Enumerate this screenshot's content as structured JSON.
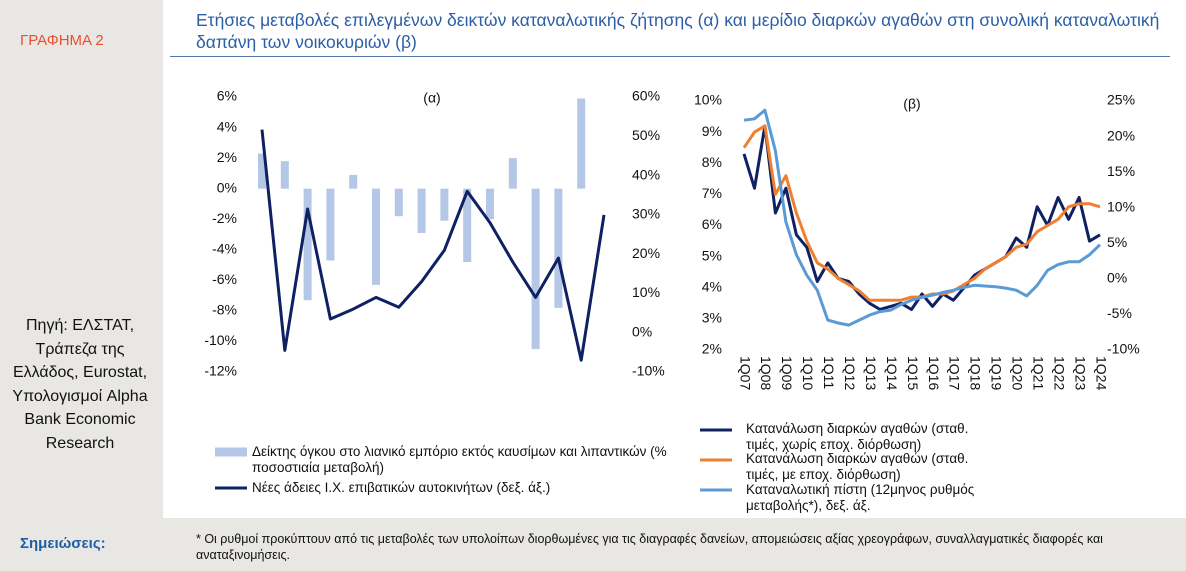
{
  "page": {
    "label": "ΓΡΑΦΗΜΑ 2",
    "title": "Ετήσιες μεταβολές επιλεγμένων δεικτών καταναλωτικής ζήτησης (α) και μερίδιο διαρκών αγαθών στη συνολική καταναλωτική δαπάνη των νοικοκυριών (β)",
    "source": "Πηγή: ΕΛΣΤΑΤ, Τράπεζα της Ελλάδος, Eurostat, Υπολογισμοί Alpha Bank Economic Research",
    "notes_label": "Σημειώσεις:",
    "notes": "* Οι ρυθμοί προκύπτουν από τις μεταβολές των υπολοίπων διορθωμένες για τις διαγραφές δανείων, απομειώσεις αξίας χρεογράφων, συναλλαγματικές διαφορές και αναταξινομήσεις."
  },
  "chart_data": [
    {
      "type": "bar",
      "title": "(α)",
      "categories": [
        null,
        null,
        null,
        null,
        null,
        null,
        null,
        null,
        null,
        null,
        null,
        null,
        null,
        null,
        null,
        null
      ],
      "series": [
        {
          "name": "Δείκτης όγκου στο λιανικό εμπόριο εκτός καυσίμων και λιπαντικών (% ποσοστιαία μεταβολή)",
          "type": "bar",
          "color": "#b4c7e7",
          "values": [
            2.3,
            1.8,
            -7.3,
            -4.7,
            0.9,
            -6.3,
            -1.8,
            -2.9,
            -2.1,
            -4.8,
            -2.0,
            2.0,
            -10.5,
            -7.8,
            5.9,
            null
          ]
        },
        {
          "name": "Νέες άδειες Ι.Χ. επιβατικών αυτοκινήτων (δεξ. άξ.)",
          "type": "line",
          "axis": "y2",
          "color": "#0f2063",
          "values": [
            51.7,
            -4.5,
            31.5,
            3.5,
            6,
            9,
            6.5,
            13,
            21,
            36,
            28,
            18,
            9,
            19,
            -7,
            30
          ]
        }
      ],
      "ylim": [
        -12,
        6
      ],
      "yticks": [
        {
          "value": 6,
          "label": "6%"
        },
        {
          "value": 4,
          "label": "4%"
        },
        {
          "value": 2,
          "label": "2%"
        },
        {
          "value": 0,
          "label": "0%"
        },
        {
          "value": -2,
          "label": "-2%"
        },
        {
          "value": -4,
          "label": "-4%"
        },
        {
          "value": -6,
          "label": "-6%"
        },
        {
          "value": -8,
          "label": "-8%"
        },
        {
          "value": -10,
          "label": "-10%"
        },
        {
          "value": -12,
          "label": "-12%"
        }
      ],
      "y2lim": [
        -10,
        60
      ],
      "y2ticks": [
        {
          "value": 60,
          "label": "60%"
        },
        {
          "value": 50,
          "label": "50%"
        },
        {
          "value": 40,
          "label": "40%"
        },
        {
          "value": 30,
          "label": "30%"
        },
        {
          "value": 20,
          "label": "20%"
        },
        {
          "value": 10,
          "label": "10%"
        },
        {
          "value": 0,
          "label": "0%"
        },
        {
          "value": -10,
          "label": "-10%"
        }
      ]
    },
    {
      "type": "line",
      "title": "(β)",
      "categories": [
        "1Q07",
        null,
        "1Q08",
        null,
        "1Q09",
        null,
        "1Q10",
        null,
        "1Q11",
        null,
        "1Q12",
        null,
        "1Q13",
        null,
        "1Q14",
        null,
        "1Q15",
        null,
        "1Q16",
        null,
        "1Q17",
        null,
        "1Q18",
        null,
        "1Q19",
        null,
        "1Q20",
        null,
        "1Q21",
        null,
        "1Q22",
        null,
        "1Q23",
        null,
        "1Q24"
      ],
      "series": [
        {
          "name": "Κατανάλωση διαρκών αγαθών (σταθ. τιμές, χωρίς εποχ. διόρθωση)",
          "color": "#0f2063",
          "values": [
            8.3,
            7.2,
            9.2,
            6.4,
            7.2,
            5.7,
            5.3,
            4.2,
            4.8,
            4.3,
            4.2,
            3.8,
            3.5,
            3.3,
            3.4,
            3.5,
            3.3,
            3.8,
            3.4,
            3.8,
            3.6,
            4.0,
            4.4,
            4.6,
            4.8,
            5.0,
            5.6,
            5.3,
            6.6,
            6.0,
            6.9,
            6.2,
            6.9,
            5.5,
            5.7
          ]
        },
        {
          "name": "Κατανάλωση διαρκών αγαθών (σταθ. τιμές, με εποχ. διόρθωση)",
          "color": "#f07f2f",
          "values": [
            8.5,
            9.0,
            9.2,
            7.0,
            7.6,
            6.4,
            5.5,
            4.8,
            4.6,
            4.3,
            4.1,
            3.9,
            3.6,
            3.6,
            3.6,
            3.6,
            3.7,
            3.7,
            3.8,
            3.8,
            3.9,
            4.1,
            4.3,
            4.6,
            4.8,
            5.0,
            5.3,
            5.4,
            5.8,
            6.0,
            6.2,
            6.6,
            6.7,
            6.7,
            6.6
          ]
        },
        {
          "name": "Καταναλωτική πίστη (12μηνος ρυθμός μεταβολής*), δεξ. άξ.",
          "axis": "y2",
          "color": "#5b9bd5",
          "values": [
            22.3,
            22.5,
            23.7,
            18,
            8,
            3.4,
            0.5,
            -1.6,
            -5.8,
            -6.2,
            -6.5,
            -5.8,
            -5.1,
            -4.6,
            -4.4,
            -3.6,
            -3,
            -2.6,
            -2.3,
            -1.9,
            -1.6,
            -1.2,
            -0.9,
            -1,
            -1.1,
            -1.3,
            -1.6,
            -2.4,
            -0.9,
            1.2,
            2,
            2.4,
            2.4,
            3.4,
            4.8
          ]
        }
      ],
      "ylim": [
        2,
        10
      ],
      "yticks": [
        {
          "value": 10,
          "label": "10%"
        },
        {
          "value": 9,
          "label": "9%"
        },
        {
          "value": 8,
          "label": "8%"
        },
        {
          "value": 7,
          "label": "7%"
        },
        {
          "value": 6,
          "label": "6%"
        },
        {
          "value": 5,
          "label": "5%"
        },
        {
          "value": 4,
          "label": "4%"
        },
        {
          "value": 3,
          "label": "3%"
        },
        {
          "value": 2,
          "label": "2%"
        }
      ],
      "y2lim": [
        -10,
        25
      ],
      "y2ticks": [
        {
          "value": 25,
          "label": "25%"
        },
        {
          "value": 20,
          "label": "20%"
        },
        {
          "value": 15,
          "label": "15%"
        },
        {
          "value": 10,
          "label": "10%"
        },
        {
          "value": 5,
          "label": "5%"
        },
        {
          "value": 0,
          "label": "0%"
        },
        {
          "value": -5,
          "label": "-5%"
        },
        {
          "value": -10,
          "label": "-10%"
        }
      ]
    }
  ]
}
